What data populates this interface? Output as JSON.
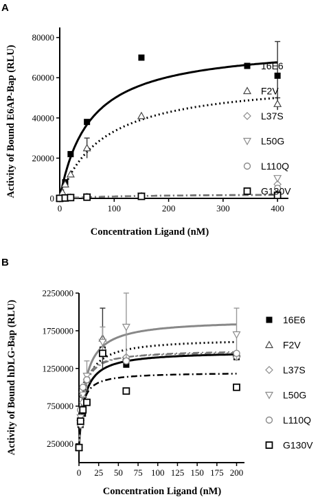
{
  "panels": [
    {
      "letter": "A",
      "chart_data": {
        "type": "scatter",
        "xlabel": "Concentration Ligand (nM)",
        "ylabel": "Activity of Bound E6AP-Bap (RLU)",
        "xlim": [
          0,
          420
        ],
        "ylim": [
          0,
          85000
        ],
        "xticks": [
          "0",
          "100",
          "200",
          "300",
          "400"
        ],
        "yticks": [
          "0",
          "20000",
          "40000",
          "60000",
          "80000"
        ],
        "legend_position": "right",
        "series": [
          {
            "name": "16E6",
            "marker": "filled-square",
            "fit": "solid",
            "x": [
              0,
              5,
              10,
              20,
              50,
              150,
              400
            ],
            "y": [
              0,
              1000,
              8000,
              22000,
              38000,
              70000,
              61000
            ],
            "err": [
              0,
              0,
              0,
              0,
              0,
              0,
              17000
            ],
            "fit_bmax": 77000,
            "fit_kd": 55
          },
          {
            "name": "F2V",
            "marker": "triangle-up",
            "fit": "dotted",
            "x": [
              0,
              5,
              10,
              20,
              50,
              150,
              400
            ],
            "y": [
              0,
              3000,
              7000,
              12000,
              25000,
              41000,
              47000
            ],
            "err": [
              0,
              0,
              0,
              0,
              5000,
              0,
              3000
            ],
            "fit_bmax": 60000,
            "fit_kd": 80
          },
          {
            "name": "L37S",
            "marker": "diamond",
            "fit": "dashdot",
            "x": [
              0,
              10,
              20,
              50,
              150,
              400
            ],
            "y": [
              0,
              300,
              500,
              800,
              1200,
              7000
            ],
            "err": [
              0,
              0,
              0,
              0,
              0,
              0
            ],
            "fit_bmax": 2500,
            "fit_kd": 150
          },
          {
            "name": "L50G",
            "marker": "triangle-down",
            "fit": "dashdot",
            "x": [
              0,
              10,
              20,
              50,
              150,
              400
            ],
            "y": [
              0,
              300,
              500,
              800,
              1300,
              10000
            ],
            "err": [
              0,
              0,
              0,
              0,
              0,
              0
            ],
            "fit_bmax": 2500,
            "fit_kd": 150
          },
          {
            "name": "L110Q",
            "marker": "circle",
            "fit": "dashdot",
            "x": [
              0,
              10,
              20,
              50,
              150,
              400
            ],
            "y": [
              0,
              300,
              500,
              800,
              1200,
              5000
            ],
            "err": [
              0,
              0,
              0,
              0,
              0,
              0
            ],
            "fit_bmax": 2500,
            "fit_kd": 150
          },
          {
            "name": "G130V",
            "marker": "open-square",
            "fit": "dashdot",
            "x": [
              0,
              10,
              20,
              50,
              150,
              400
            ],
            "y": [
              0,
              200,
              400,
              600,
              1000,
              1500
            ],
            "err": [
              0,
              0,
              0,
              0,
              0,
              0
            ],
            "fit_bmax": 2200,
            "fit_kd": 150
          }
        ]
      }
    },
    {
      "letter": "B",
      "chart_data": {
        "type": "scatter",
        "xlabel": "Concentration Ligand (nM)",
        "ylabel": "Activity of Bound hDLG-Bap (RLU)",
        "xlim": [
          0,
          210
        ],
        "ylim": [
          0,
          2250000
        ],
        "xticks": [
          "0",
          "25",
          "50",
          "75",
          "100",
          "125",
          "150",
          "175",
          "200"
        ],
        "yticks": [
          "250000",
          "750000",
          "1250000",
          "1750000",
          "2250000"
        ],
        "legend_position": "right",
        "series": [
          {
            "name": "16E6",
            "marker": "filled-square",
            "fit": "solid",
            "x": [
              0,
              2,
              5,
              10,
              30,
              60,
              200
            ],
            "y": [
              200000,
              500000,
              650000,
              800000,
              1500000,
              1300000,
              1400000
            ],
            "err": [
              0,
              0,
              0,
              0,
              0,
              0,
              0
            ],
            "fit_bmax": 1480000,
            "fit_kd": 7
          },
          {
            "name": "F2V",
            "marker": "triangle-up",
            "fit": "dotted",
            "x": [
              0,
              2,
              5,
              10,
              30,
              60,
              200
            ],
            "y": [
              200000,
              600000,
              900000,
              1100000,
              1650000,
              1400000,
              1450000
            ],
            "err": [
              0,
              0,
              0,
              0,
              400000,
              0,
              0
            ],
            "fit_bmax": 1650000,
            "fit_kd": 7
          },
          {
            "name": "L37S",
            "marker": "diamond",
            "fit": "dashdot",
            "x": [
              0,
              2,
              5,
              10,
              30,
              60,
              200
            ],
            "y": [
              200000,
              500000,
              800000,
              1100000,
              1500000,
              1400000,
              1400000
            ],
            "err": [
              0,
              0,
              0,
              0,
              0,
              0,
              0
            ],
            "fit_bmax": 1500000,
            "fit_kd": 5
          },
          {
            "name": "L50G",
            "marker": "triangle-down",
            "fit": "solid-grey",
            "x": [
              0,
              2,
              5,
              10,
              30,
              60,
              200
            ],
            "y": [
              200000,
              600000,
              900000,
              1150000,
              1600000,
              1800000,
              1700000
            ],
            "err": [
              0,
              0,
              0,
              200000,
              200000,
              450000,
              350000
            ],
            "fit_bmax": 1900000,
            "fit_kd": 8
          },
          {
            "name": "L110Q",
            "marker": "circle",
            "fit": "dashdot",
            "x": [
              0,
              2,
              5,
              10,
              30,
              60,
              200
            ],
            "y": [
              200000,
              700000,
              1000000,
              1100000,
              1450000,
              1350000,
              1450000
            ],
            "err": [
              0,
              0,
              0,
              0,
              0,
              0,
              0
            ],
            "fit_bmax": 1480000,
            "fit_kd": 4
          },
          {
            "name": "G130V",
            "marker": "open-square",
            "fit": "dashdotdark",
            "x": [
              0,
              2,
              5,
              10,
              30,
              60,
              200
            ],
            "y": [
              200000,
              550000,
              700000,
              800000,
              1450000,
              950000,
              1000000
            ],
            "err": [
              0,
              0,
              0,
              0,
              0,
              0,
              0
            ],
            "fit_bmax": 1200000,
            "fit_kd": 4
          }
        ]
      }
    }
  ]
}
